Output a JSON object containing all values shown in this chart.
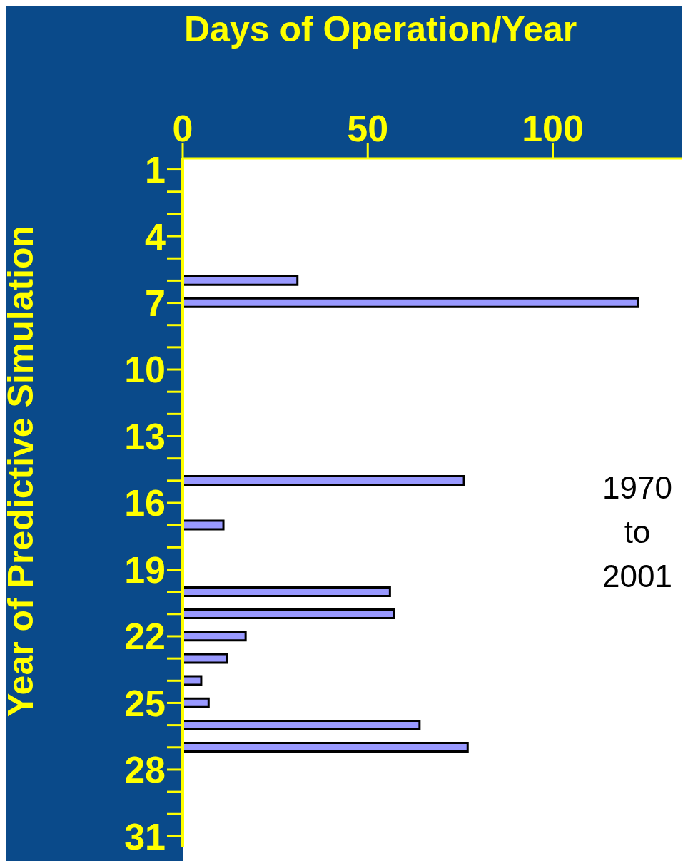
{
  "chart_data": {
    "type": "bar",
    "orientation": "horizontal",
    "xlabel": "Days of Operation/Year",
    "ylabel": "Year of Predictive Simulation",
    "categories": [
      "1",
      null,
      null,
      "4",
      null,
      null,
      "7",
      null,
      null,
      "10",
      null,
      null,
      "13",
      null,
      null,
      "16",
      null,
      null,
      "19",
      null,
      null,
      "22",
      null,
      null,
      "25",
      null,
      null,
      "28",
      null,
      null,
      "31"
    ],
    "values": [
      null,
      null,
      null,
      null,
      null,
      31,
      123,
      null,
      null,
      null,
      null,
      null,
      null,
      null,
      76,
      null,
      11,
      null,
      null,
      56,
      57,
      17,
      12,
      5,
      7,
      64,
      77,
      null,
      null,
      null,
      null
    ],
    "color": "#9999ff",
    "xlim": [
      0,
      135
    ],
    "xticks": [
      0,
      50,
      100
    ],
    "annotations": [
      "1970 to 2001"
    ]
  }
}
